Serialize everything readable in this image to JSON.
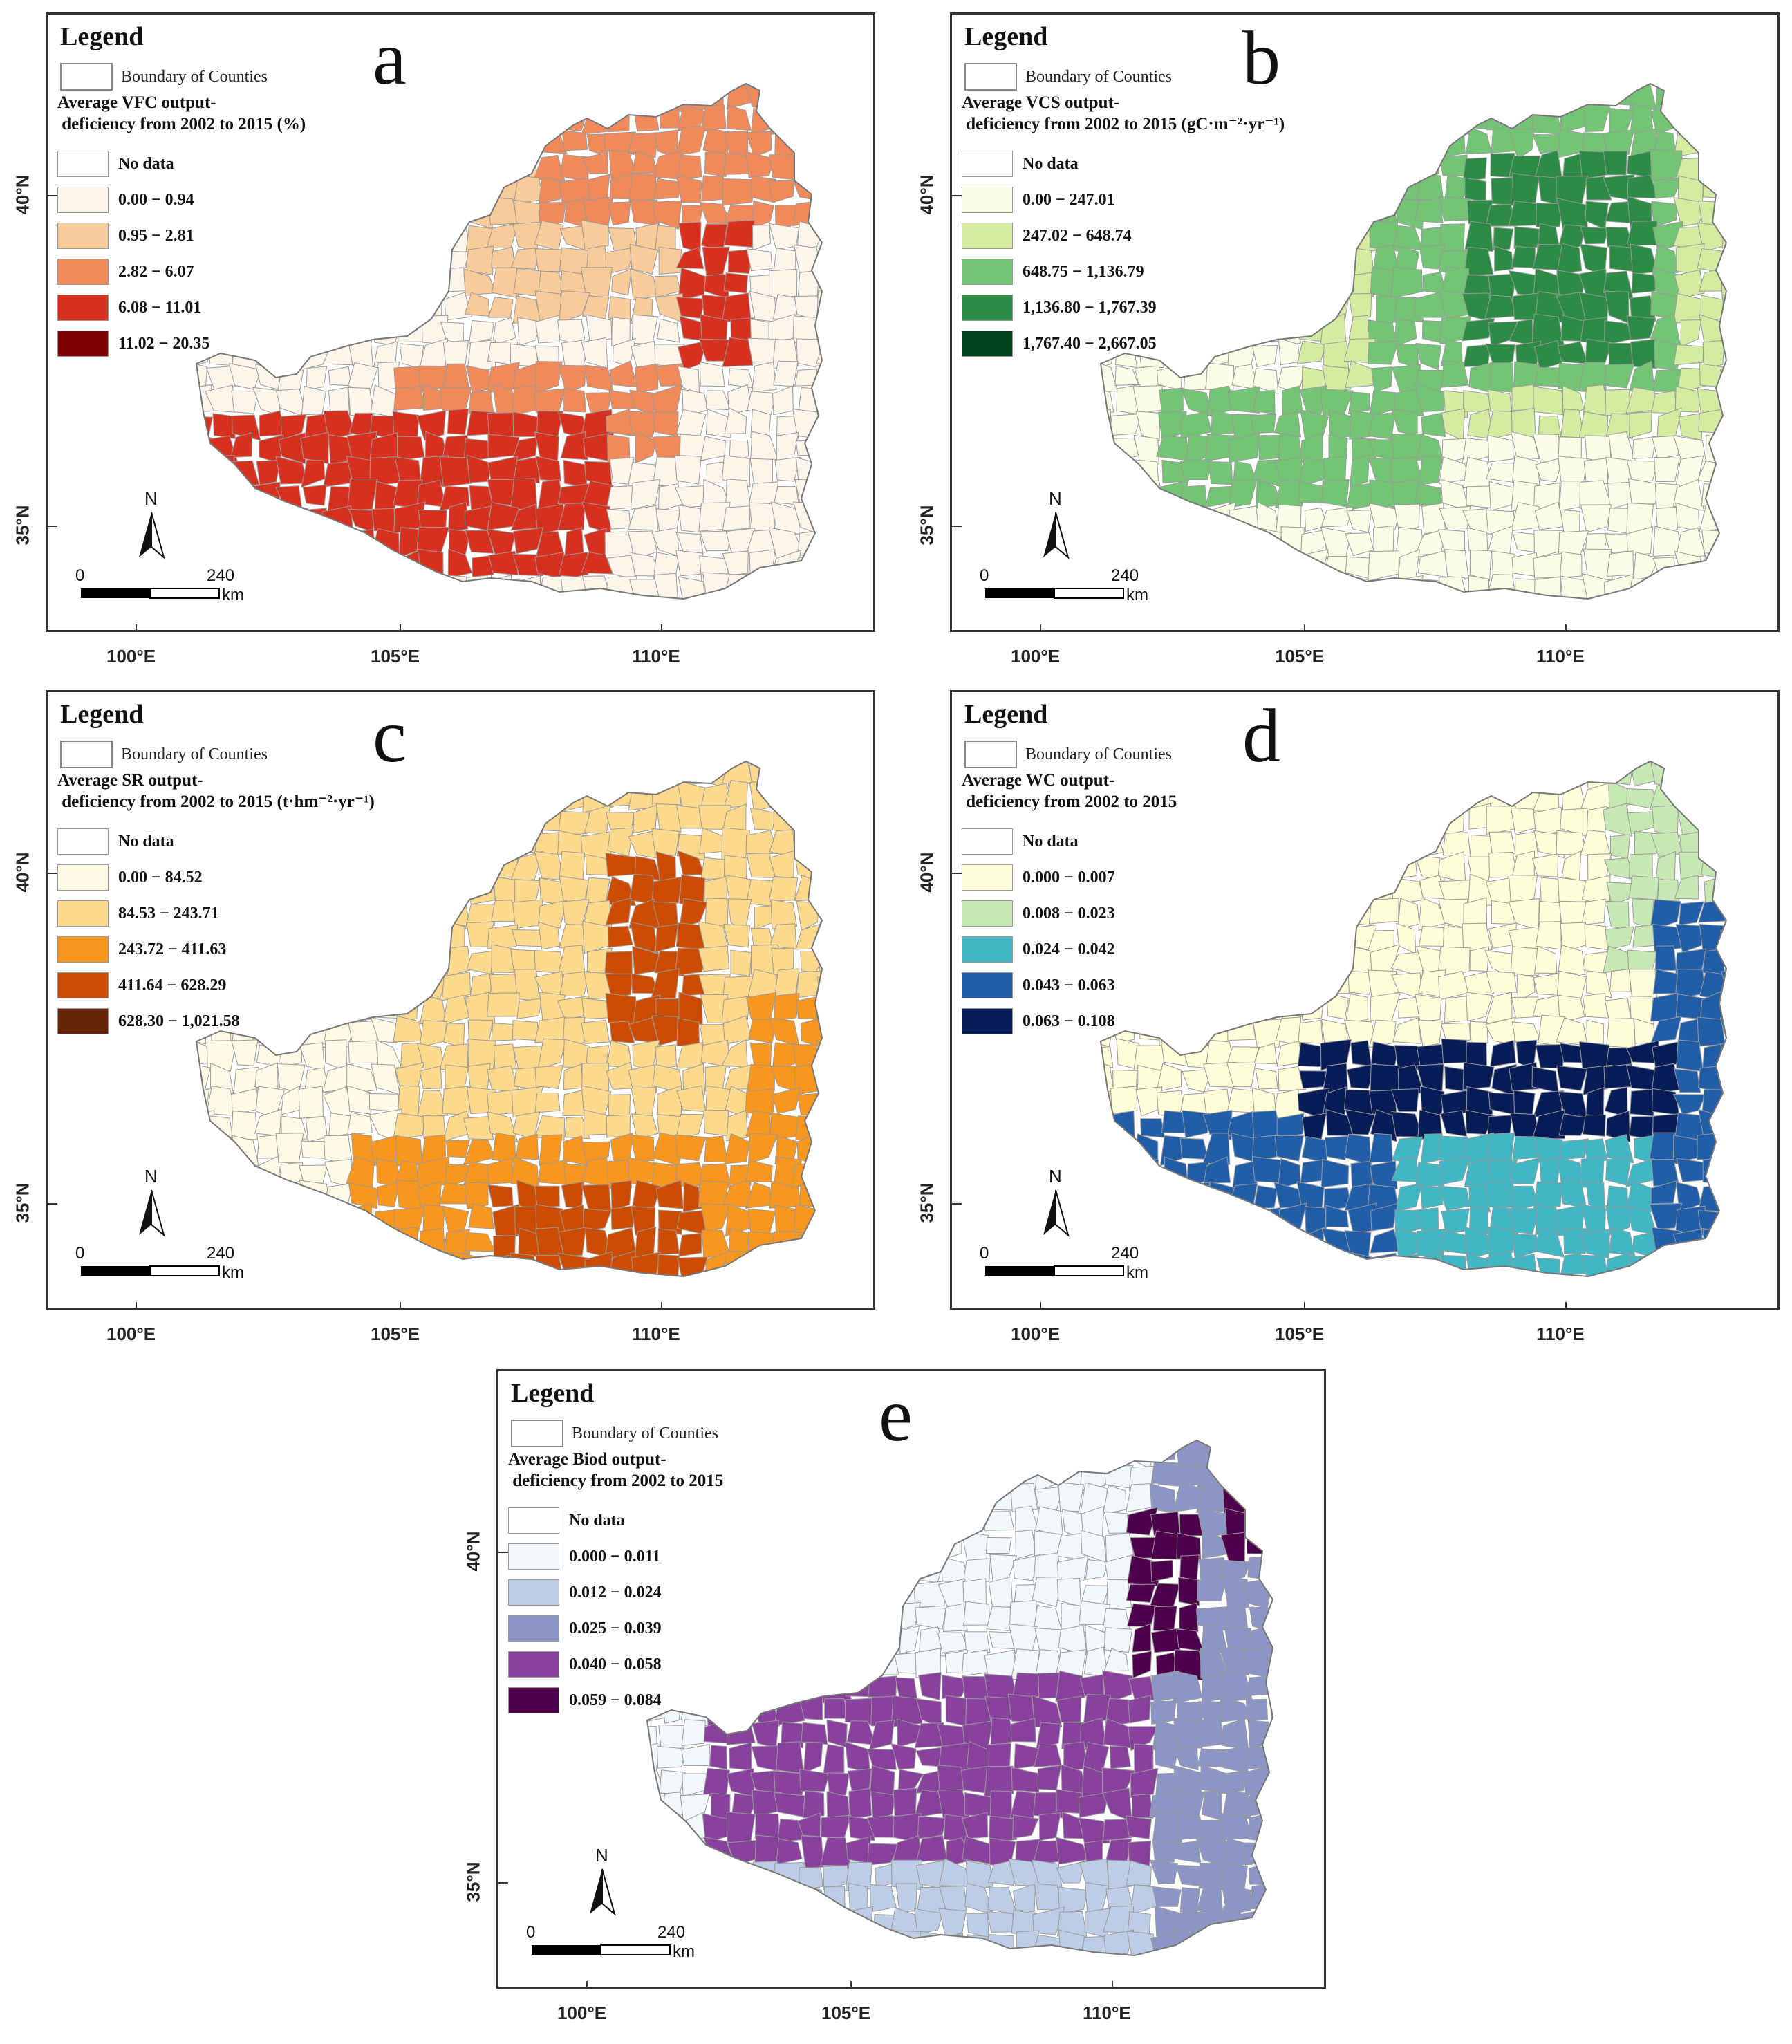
{
  "legend_heading": "Legend",
  "boundary_label": "Boundary of Counties",
  "no_data_label": "No data",
  "north_label": "N",
  "scale": {
    "zero": "0",
    "max": "240",
    "unit": "km"
  },
  "lat_labels": [
    "40°N",
    "35°N"
  ],
  "lon_labels": [
    "100°E",
    "105°E",
    "110°E"
  ],
  "panels": [
    {
      "letter": "a",
      "title": "Average VFC output-\n deficiency from 2002 to 2015 (%)",
      "classes": [
        {
          "label": "No data",
          "color": "#ffffff"
        },
        {
          "label": "0.00 − 0.94",
          "color": "#fdf5ea"
        },
        {
          "label": "0.95 − 2.81",
          "color": "#f8cb9a"
        },
        {
          "label": "2.82 − 6.07",
          "color": "#f08a5a"
        },
        {
          "label": "6.08 − 11.01",
          "color": "#d7301f"
        },
        {
          "label": "11.02 − 20.35",
          "color": "#7f0000"
        }
      ]
    },
    {
      "letter": "b",
      "title": "Average VCS output-\n deficiency from 2002 to 2015 (gC·m⁻²·yr⁻¹)",
      "classes": [
        {
          "label": "No data",
          "color": "#ffffff"
        },
        {
          "label": "0.00 − 247.01",
          "color": "#fbfde6"
        },
        {
          "label": "247.02 − 648.74",
          "color": "#d4eca1"
        },
        {
          "label": "648.75 − 1,136.79",
          "color": "#74c476"
        },
        {
          "label": "1,136.80 − 1,767.39",
          "color": "#2e8b45"
        },
        {
          "label": "1,767.40 − 2,667.05",
          "color": "#00441b"
        }
      ]
    },
    {
      "letter": "c",
      "title": "Average SR output-\n deficiency from 2002 to 2015 (t·hm⁻²·yr⁻¹)",
      "classes": [
        {
          "label": "No data",
          "color": "#ffffff"
        },
        {
          "label": "0.00 − 84.52",
          "color": "#fffae6"
        },
        {
          "label": "84.53 − 243.71",
          "color": "#fdd98e"
        },
        {
          "label": "243.72 − 411.63",
          "color": "#f8961e"
        },
        {
          "label": "411.64 − 628.29",
          "color": "#cc4c02"
        },
        {
          "label": "628.30 − 1,021.58",
          "color": "#662506"
        }
      ]
    },
    {
      "letter": "d",
      "title": "Average WC output-\n deficiency from 2002 to 2015",
      "classes": [
        {
          "label": "No data",
          "color": "#ffffff"
        },
        {
          "label": "0.000 − 0.007",
          "color": "#fefed8"
        },
        {
          "label": "0.008 − 0.023",
          "color": "#c7e8b4"
        },
        {
          "label": "0.024 − 0.042",
          "color": "#41b6c4"
        },
        {
          "label": "0.043 − 0.063",
          "color": "#225ea8"
        },
        {
          "label": "0.063 − 0.108",
          "color": "#081d58"
        }
      ]
    },
    {
      "letter": "e",
      "title": "Average Biod output-\n deficiency from 2002 to 2015",
      "classes": [
        {
          "label": "No data",
          "color": "#ffffff"
        },
        {
          "label": "0.000 − 0.011",
          "color": "#f2f7fb"
        },
        {
          "label": "0.012 − 0.024",
          "color": "#bccde5"
        },
        {
          "label": "0.025 − 0.039",
          "color": "#8c96c6"
        },
        {
          "label": "0.040 − 0.058",
          "color": "#88419d"
        },
        {
          "label": "0.059 − 0.084",
          "color": "#4d004b"
        }
      ]
    }
  ]
}
